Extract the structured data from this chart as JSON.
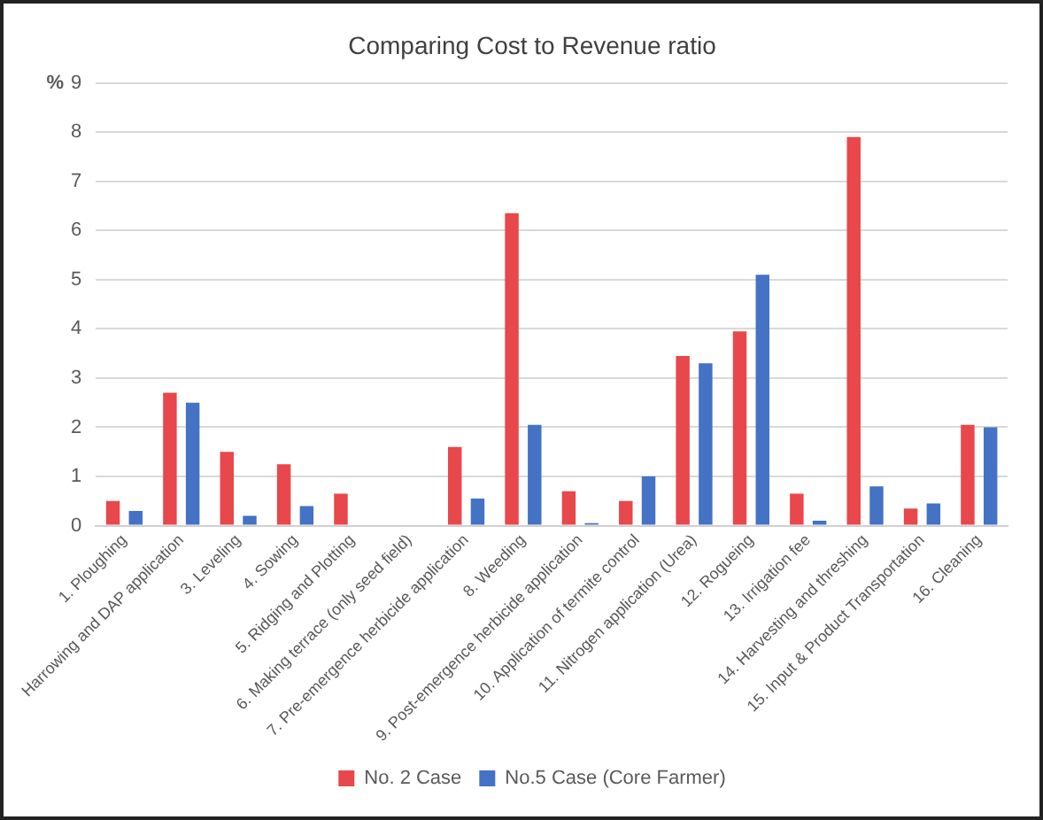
{
  "chart_data": {
    "type": "bar",
    "title": "Comparing Cost to Revenue ratio",
    "ylabel": "%",
    "categories": [
      "1. Ploughing",
      "Harrowing and DAP application",
      "3. Leveling",
      "4. Sowing",
      "5. Ridging and Plotting",
      "6. Making terrace (only seed field)",
      "7. Pre-emergence herbicide application",
      "8. Weeding",
      "9. Post-emergence herbicide application",
      "10. Application of termite control",
      "11. Nitrogen application (Urea)",
      "12. Rogueing",
      "13. Irrigation fee",
      "14. Harvesting and threshing",
      "15. Input & Product Transportation",
      "16. Cleaning"
    ],
    "series": [
      {
        "name": "No. 2 Case",
        "color": "#e8474b",
        "values": [
          0.5,
          2.7,
          1.5,
          1.25,
          0.65,
          null,
          1.6,
          6.35,
          0.7,
          0.5,
          3.45,
          3.95,
          0.65,
          7.9,
          0.35,
          2.05
        ]
      },
      {
        "name": "No.5 Case (Core Farmer)",
        "color": "#4472c4",
        "values": [
          0.3,
          2.5,
          0.2,
          0.4,
          null,
          null,
          0.55,
          2.05,
          0.05,
          1.0,
          3.3,
          5.1,
          0.1,
          0.8,
          0.45,
          2.0
        ]
      }
    ],
    "ylim": [
      0,
      9
    ],
    "yticks": [
      0,
      1,
      2,
      3,
      4,
      5,
      6,
      7,
      8,
      9
    ],
    "grid": "y",
    "legend": "bottom"
  }
}
